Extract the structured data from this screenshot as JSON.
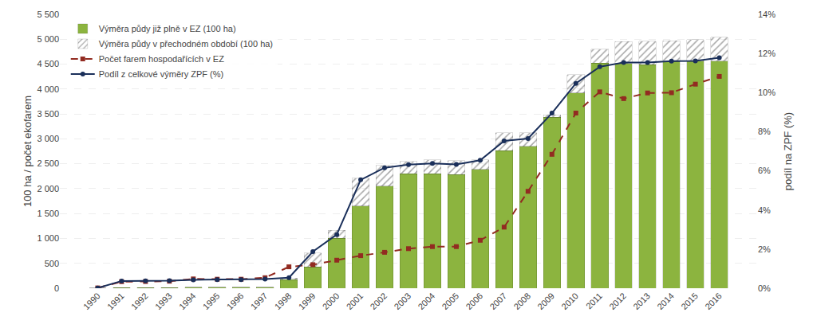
{
  "chart_data": {
    "type": "bar",
    "stacked": true,
    "categories": [
      "1990",
      "1991",
      "1992",
      "1993",
      "1994",
      "1995",
      "1996",
      "1997",
      "1998",
      "1999",
      "2000",
      "2001",
      "2002",
      "2003",
      "2004",
      "2005",
      "2006",
      "2007",
      "2008",
      "2009",
      "2010",
      "2011",
      "2012",
      "2013",
      "2014",
      "2015",
      "2016"
    ],
    "series": [
      {
        "name": "Výměra půdy již plně v EZ (100 ha)",
        "type": "bar",
        "color": "#8cb43f",
        "values": [
          3,
          14,
          15,
          16,
          17,
          18,
          18,
          20,
          170,
          430,
          1000,
          1650,
          2050,
          2300,
          2300,
          2280,
          2390,
          2760,
          2850,
          3430,
          3920,
          4520,
          4510,
          4490,
          4550,
          4560,
          4560
        ]
      },
      {
        "name": "Výměra půdy v přechodném období (100 ha)",
        "type": "bar",
        "color": "#cde083",
        "values": [
          0,
          0,
          0,
          0,
          0,
          0,
          0,
          0,
          30,
          280,
          160,
          560,
          420,
          250,
          280,
          280,
          190,
          360,
          270,
          50,
          370,
          280,
          440,
          470,
          420,
          430,
          480
        ]
      },
      {
        "name": "Počet farem hospodařících v EZ",
        "type": "line",
        "color": "#922b21",
        "marker": "square",
        "line_style": "dashed",
        "values": [
          6,
          132,
          135,
          141,
          187,
          181,
          181,
          211,
          430,
          473,
          563,
          654,
          721,
          795,
          836,
          836,
          963,
          1227,
          1946,
          2689,
          3517,
          3943,
          3808,
          3921,
          3926,
          4098,
          4254
        ]
      },
      {
        "name": "Podíl z celkové výměry ZPF (%)",
        "type": "line",
        "color": "#1a2f5a",
        "marker": "circle",
        "line_style": "solid",
        "axis": "y2",
        "values": [
          0.01,
          0.37,
          0.38,
          0.39,
          0.43,
          0.44,
          0.44,
          0.47,
          0.54,
          1.87,
          2.74,
          5.54,
          6.16,
          6.32,
          6.38,
          6.33,
          6.54,
          7.53,
          7.65,
          8.95,
          10.47,
          11.32,
          11.54,
          11.54,
          11.61,
          11.62,
          11.78
        ]
      }
    ],
    "ylabel": "100 ha / počet ekofarem",
    "y2label": "podíl na ZPF (%)",
    "ylim": [
      0,
      5500
    ],
    "yticks": [
      0,
      500,
      {
        "value": 1000,
        "label": "1 000"
      },
      {
        "value": 1500,
        "label": "1 500"
      },
      {
        "value": 2000,
        "label": "2 000"
      },
      {
        "value": 2500,
        "label": "2 500"
      },
      {
        "value": 3000,
        "label": "3 000"
      },
      {
        "value": 3500,
        "label": "3 500"
      },
      {
        "value": 4000,
        "label": "4 000"
      },
      {
        "value": 4500,
        "label": "4 500"
      },
      {
        "value": 5000,
        "label": "5 000"
      },
      {
        "value": 5500,
        "label": "5 500"
      }
    ],
    "y2lim": [
      0,
      14
    ],
    "y2ticks": [
      {
        "value": 0,
        "label": "0%"
      },
      {
        "value": 2,
        "label": "2%"
      },
      {
        "value": 4,
        "label": "4%"
      },
      {
        "value": 6,
        "label": "6%"
      },
      {
        "value": 8,
        "label": "8%"
      },
      {
        "value": 10,
        "label": "10%"
      },
      {
        "value": 12,
        "label": "12%"
      },
      {
        "value": 14,
        "label": "14%"
      }
    ],
    "grid": true,
    "legend": "upper left"
  }
}
